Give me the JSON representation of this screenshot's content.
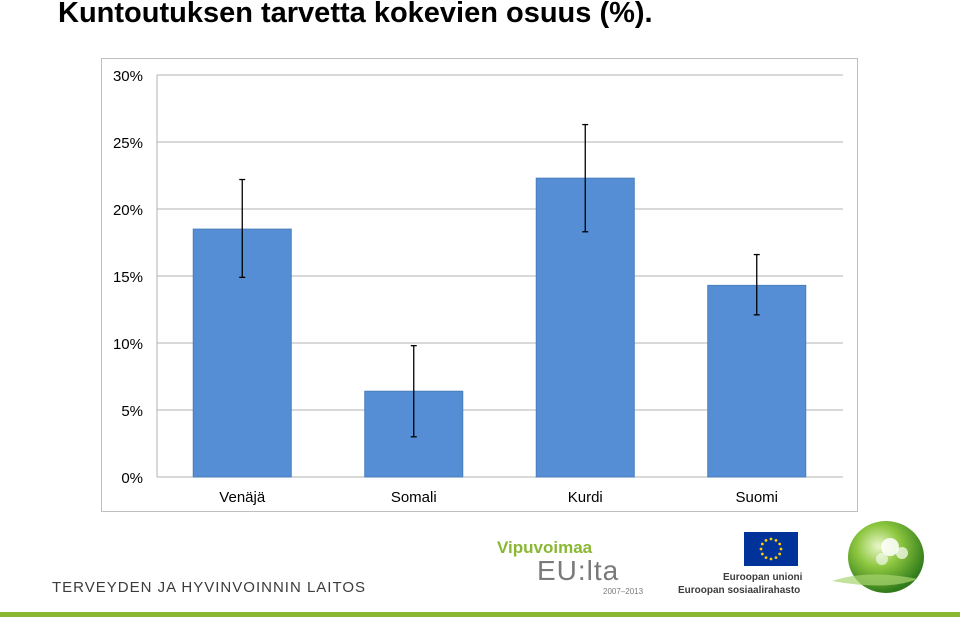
{
  "title": "Kuntoutuksen tarvetta kokevien osuus (%).",
  "chart_data": {
    "type": "bar",
    "categories": [
      "Venäjä",
      "Somali",
      "Kurdi",
      "Suomi"
    ],
    "values": [
      18.5,
      6.4,
      22.3,
      14.3
    ],
    "error_low": [
      14.9,
      3.0,
      18.3,
      12.1
    ],
    "error_high": [
      22.2,
      9.8,
      26.3,
      16.6
    ],
    "ylim": [
      0,
      30
    ],
    "yticks": [
      "0%",
      "5%",
      "10%",
      "15%",
      "20%",
      "25%",
      "30%"
    ],
    "ytick_values": [
      0,
      5,
      10,
      15,
      20,
      25,
      30
    ],
    "grid": true,
    "legend": "none",
    "bar_color": "#558ed5",
    "bar_edge_color": "#4a7ebb"
  },
  "footer": {
    "org": "TERVEYDEN JA HYVINVOINNIN LAITOS",
    "logo_top": "Vipuvoimaa",
    "logo_mid": "EU:lta",
    "logo_years": "2007–2013",
    "eu_line1": "Euroopan unioni",
    "eu_line2": "Euroopan sosiaalirahasto",
    "eu_flag_color": "#003399",
    "eu_star_color": "#ffcc00",
    "accent_color": "#8ab833"
  }
}
